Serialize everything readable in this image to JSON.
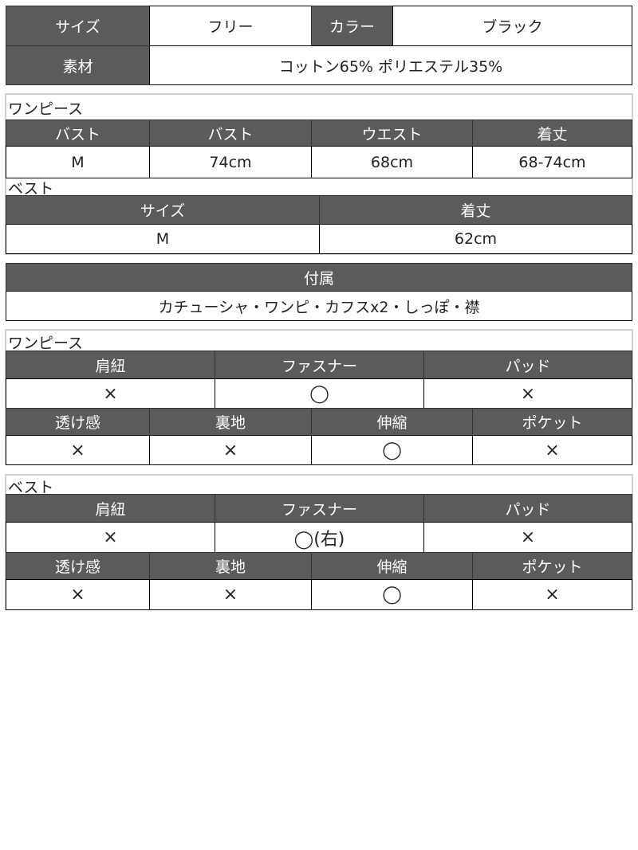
{
  "basic": {
    "size_label": "サイズ",
    "size_value": "フリー",
    "color_label": "カラー",
    "color_value": "ブラック",
    "material_label": "素材",
    "material_value": "コットン65% ポリエステル35%"
  },
  "dress_size": {
    "title": "ワンピース",
    "headers": [
      "バスト",
      "バスト",
      "ウエスト",
      "着丈"
    ],
    "values": [
      "M",
      "74cm",
      "68cm",
      "68-74cm"
    ]
  },
  "vest_size": {
    "title": "ベスト",
    "headers": [
      "サイズ",
      "着丈"
    ],
    "values": [
      "M",
      "62cm"
    ]
  },
  "accessories": {
    "label": "付属",
    "value": "カチューシャ・ワンピ・カフスx2・しっぽ・襟"
  },
  "dress_features": {
    "title": "ワンピース",
    "row1_headers": [
      "肩紐",
      "ファスナー",
      "パッド"
    ],
    "row1_values": [
      "×",
      "◯",
      "×"
    ],
    "row2_headers": [
      "透け感",
      "裏地",
      "伸縮",
      "ポケット"
    ],
    "row2_values": [
      "×",
      "×",
      "◯",
      "×"
    ]
  },
  "vest_features": {
    "title": "ベスト",
    "row1_headers": [
      "肩紐",
      "ファスナー",
      "パッド"
    ],
    "row1_values": [
      "×",
      "◯(右)",
      "×"
    ],
    "row2_headers": [
      "透け感",
      "裏地",
      "伸縮",
      "ポケット"
    ],
    "row2_values": [
      "×",
      "×",
      "◯",
      "×"
    ]
  },
  "colors": {
    "header_bg": "#5b5b5b",
    "header_text": "#ffffff",
    "border": "#000000"
  }
}
